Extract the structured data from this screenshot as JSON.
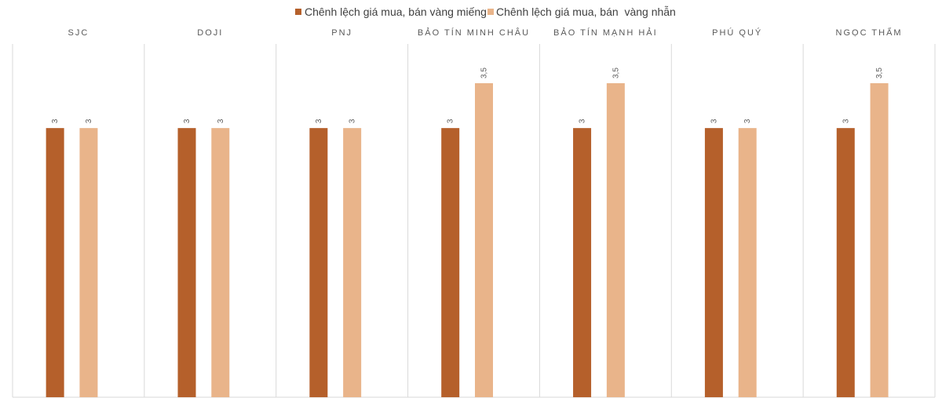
{
  "chart_data": {
    "type": "bar",
    "categories": [
      "SJC",
      "DOJI",
      "PNJ",
      "BẢO TÍN MINH CHÂU",
      "BẢO TÍN MẠNH HẢI",
      "PHÚ QUÝ",
      "NGỌC THẨM"
    ],
    "series": [
      {
        "name": "Chênh lệch giá mua, bán vàng miếng",
        "color": "#B5602B",
        "values": [
          3,
          3,
          3,
          3,
          3,
          3,
          3
        ],
        "labels": [
          "3",
          "3",
          "3",
          "3",
          "3",
          "3",
          "3"
        ]
      },
      {
        "name": "Chênh lệch giá mua, bán  vàng nhẫn",
        "color": "#E9B48A",
        "values": [
          3,
          3,
          3,
          3.5,
          3.5,
          3,
          3.5
        ],
        "labels": [
          "3",
          "3",
          "3",
          "3,5",
          "3,5",
          "3",
          "3,5"
        ]
      }
    ],
    "ylim": [
      0,
      3.5
    ],
    "legend_position": "top-center",
    "panel_dividers": true
  }
}
